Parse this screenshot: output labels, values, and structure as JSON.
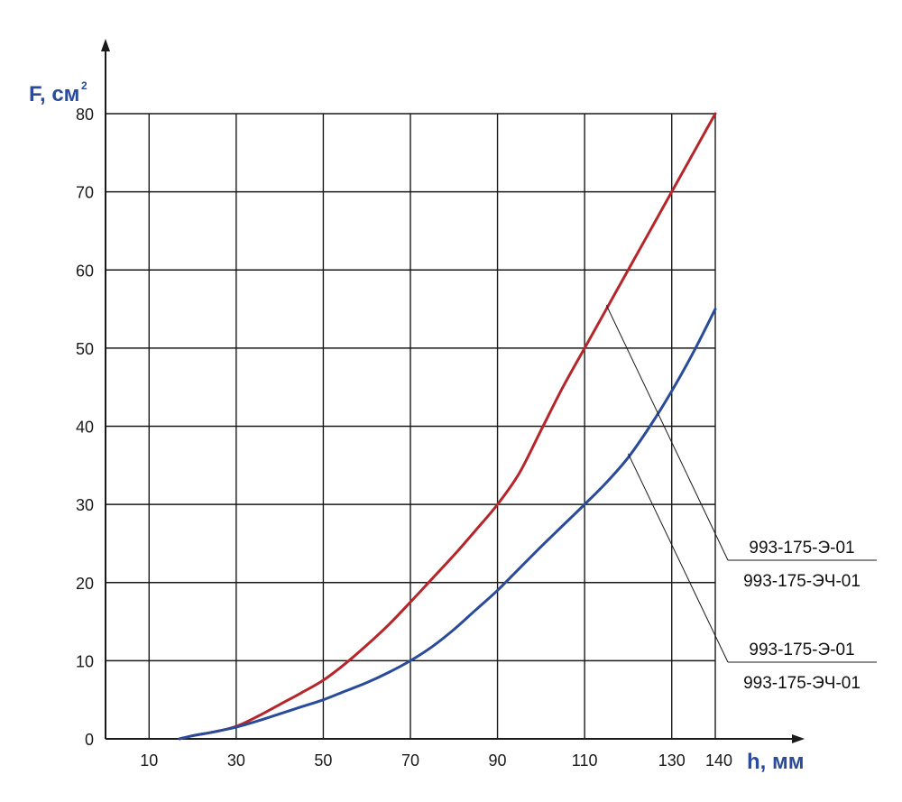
{
  "chart_data": {
    "type": "line",
    "xlabel": "h, мм",
    "ylabel": "F, см",
    "ylabel_sup": "2",
    "xlim": [
      0,
      140
    ],
    "ylim": [
      0,
      80
    ],
    "x_ticks": [
      10,
      30,
      50,
      70,
      90,
      110,
      130,
      140
    ],
    "y_ticks": [
      0,
      10,
      20,
      30,
      40,
      50,
      60,
      70,
      80
    ],
    "grid": true,
    "series": [
      {
        "color": "#b5262b",
        "points": [
          [
            17,
            0
          ],
          [
            20,
            0.4
          ],
          [
            25,
            0.9
          ],
          [
            30,
            1.6
          ],
          [
            35,
            2.9
          ],
          [
            40,
            4.4
          ],
          [
            45,
            5.9
          ],
          [
            50,
            7.5
          ],
          [
            55,
            9.6
          ],
          [
            60,
            12
          ],
          [
            65,
            14.6
          ],
          [
            70,
            17.5
          ],
          [
            75,
            20.5
          ],
          [
            80,
            23.5
          ],
          [
            85,
            26.7
          ],
          [
            90,
            30
          ],
          [
            95,
            34
          ],
          [
            100,
            39.5
          ],
          [
            105,
            45
          ],
          [
            110,
            50
          ],
          [
            115,
            55
          ],
          [
            120,
            60
          ],
          [
            125,
            65
          ],
          [
            130,
            70
          ],
          [
            135,
            75
          ],
          [
            140,
            80
          ]
        ]
      },
      {
        "color": "#2a4a9a",
        "points": [
          [
            17,
            0
          ],
          [
            20,
            0.4
          ],
          [
            25,
            0.9
          ],
          [
            30,
            1.5
          ],
          [
            35,
            2.3
          ],
          [
            40,
            3.2
          ],
          [
            45,
            4.1
          ],
          [
            50,
            5
          ],
          [
            55,
            6.1
          ],
          [
            60,
            7.2
          ],
          [
            65,
            8.5
          ],
          [
            70,
            10
          ],
          [
            75,
            11.8
          ],
          [
            80,
            14
          ],
          [
            85,
            16.5
          ],
          [
            90,
            19
          ],
          [
            95,
            21.8
          ],
          [
            100,
            24.6
          ],
          [
            105,
            27.3
          ],
          [
            110,
            30
          ],
          [
            115,
            32.8
          ],
          [
            120,
            36
          ],
          [
            125,
            40
          ],
          [
            130,
            44.5
          ],
          [
            135,
            49.5
          ],
          [
            140,
            55
          ]
        ]
      }
    ],
    "annotations": [
      {
        "top": "993-175-Э-01",
        "bottom": "993-175-ЭЧ-01",
        "anchor": [
          115,
          55.5
        ],
        "series": 0
      },
      {
        "top": "993-175-Э-01",
        "bottom": "993-175-ЭЧ-01",
        "anchor": [
          120,
          36.5
        ],
        "series": 1
      }
    ]
  }
}
